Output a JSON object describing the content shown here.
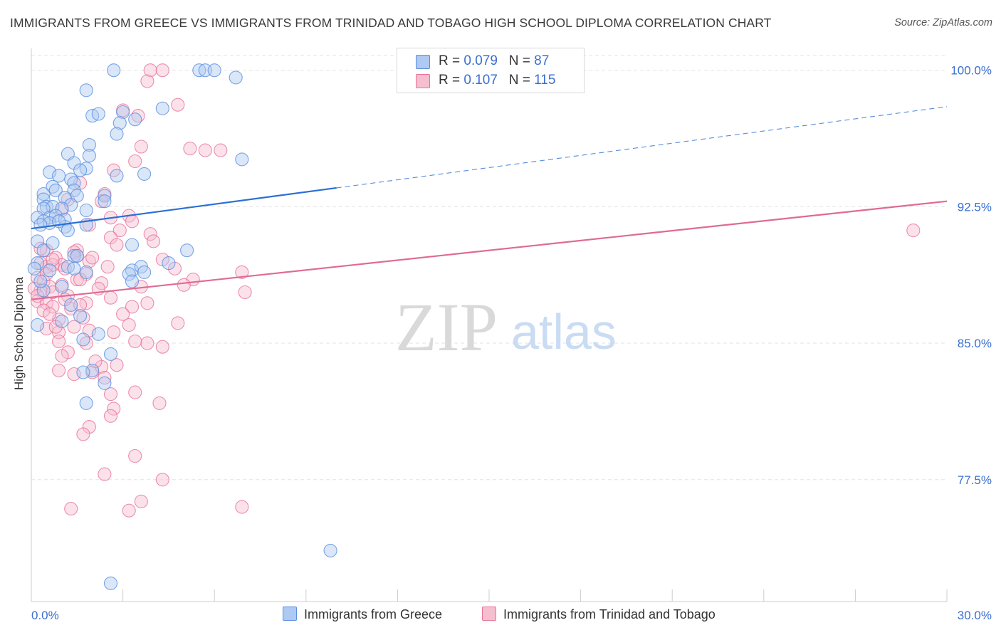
{
  "title": "IMMIGRANTS FROM GREECE VS IMMIGRANTS FROM TRINIDAD AND TOBAGO HIGH SCHOOL DIPLOMA CORRELATION CHART",
  "source": "Source: ZipAtlas.com",
  "watermark": {
    "zip": "ZIP",
    "atlas": "atlas"
  },
  "legend": {
    "greece": {
      "r_label": "R = ",
      "r": "0.079",
      "n_label": "N = ",
      "n": "87"
    },
    "trinidad": {
      "r_label": "R = ",
      "r": "0.107",
      "n_label": "N = ",
      "n": "115"
    }
  },
  "colors": {
    "greece": "#5b8fe0",
    "greece_fill": "#aec9f2",
    "trinidad": "#e9739a",
    "trinidad_fill": "#f6bfd0",
    "grid": "#e3e3e3",
    "tick_text": "#3a6fd0"
  },
  "chart_data": {
    "type": "scatter",
    "title": "IMMIGRANTS FROM GREECE VS IMMIGRANTS FROM TRINIDAD AND TOBAGO HIGH SCHOOL DIPLOMA CORRELATION CHART",
    "xlabel": "",
    "ylabel": "High School Diploma",
    "xlim": [
      0,
      30
    ],
    "ylim": [
      70.8,
      101.2
    ],
    "x_tick_labels": [
      "0.0%",
      "30.0%"
    ],
    "y_ticks": [
      77.5,
      85.0,
      92.5,
      100.0
    ],
    "y_tick_labels": [
      "77.5%",
      "85.0%",
      "92.5%",
      "100.0%"
    ],
    "grid": true,
    "series": [
      {
        "name": "Immigrants from Greece",
        "r": 0.079,
        "n": 87,
        "trend": {
          "x0": 0,
          "y0": 91.3,
          "x1": 30,
          "y1": 98.0,
          "solid_until": 10.0
        },
        "points": [
          [
            2.7,
            100
          ],
          [
            5.5,
            100
          ],
          [
            5.7,
            100
          ],
          [
            6.0,
            100
          ],
          [
            6.7,
            99.6
          ],
          [
            1.8,
            98.9
          ],
          [
            4.3,
            97.9
          ],
          [
            2.0,
            97.5
          ],
          [
            2.2,
            97.6
          ],
          [
            3.0,
            97.7
          ],
          [
            2.9,
            97.1
          ],
          [
            3.4,
            97.3
          ],
          [
            2.8,
            96.5
          ],
          [
            1.9,
            95.9
          ],
          [
            1.2,
            95.4
          ],
          [
            6.9,
            95.1
          ],
          [
            1.9,
            95.3
          ],
          [
            1.4,
            94.9
          ],
          [
            0.6,
            94.4
          ],
          [
            1.3,
            94.0
          ],
          [
            3.7,
            94.3
          ],
          [
            1.8,
            94.6
          ],
          [
            1.6,
            94.5
          ],
          [
            2.8,
            94.2
          ],
          [
            0.9,
            94.2
          ],
          [
            1.4,
            93.8
          ],
          [
            0.7,
            93.6
          ],
          [
            0.4,
            93.2
          ],
          [
            1.4,
            93.4
          ],
          [
            0.8,
            93.4
          ],
          [
            1.5,
            93.1
          ],
          [
            2.4,
            93.1
          ],
          [
            1.1,
            93.0
          ],
          [
            0.4,
            92.9
          ],
          [
            1.3,
            92.6
          ],
          [
            0.5,
            92.5
          ],
          [
            0.7,
            92.5
          ],
          [
            1.0,
            92.4
          ],
          [
            2.4,
            92.8
          ],
          [
            1.8,
            92.3
          ],
          [
            0.4,
            92.4
          ],
          [
            0.2,
            91.9
          ],
          [
            0.6,
            91.9
          ],
          [
            0.8,
            92.0
          ],
          [
            1.1,
            91.8
          ],
          [
            0.4,
            91.7
          ],
          [
            0.6,
            91.6
          ],
          [
            0.3,
            91.5
          ],
          [
            1.1,
            91.4
          ],
          [
            1.8,
            91.5
          ],
          [
            1.2,
            91.2
          ],
          [
            0.2,
            90.6
          ],
          [
            0.4,
            90.1
          ],
          [
            5.1,
            90.1
          ],
          [
            3.3,
            90.4
          ],
          [
            1.4,
            89.8
          ],
          [
            0.2,
            89.4
          ],
          [
            1.2,
            89.2
          ],
          [
            1.4,
            89.1
          ],
          [
            3.3,
            89.0
          ],
          [
            3.6,
            89.2
          ],
          [
            4.5,
            89.4
          ],
          [
            1.8,
            88.9
          ],
          [
            3.2,
            88.8
          ],
          [
            3.7,
            88.9
          ],
          [
            3.3,
            88.4
          ],
          [
            1.0,
            88.1
          ],
          [
            0.4,
            87.9
          ],
          [
            1.3,
            87.1
          ],
          [
            1.0,
            86.2
          ],
          [
            0.2,
            86.0
          ],
          [
            1.6,
            86.5
          ],
          [
            2.2,
            85.5
          ],
          [
            1.7,
            85.2
          ],
          [
            2.6,
            84.4
          ],
          [
            2.0,
            83.5
          ],
          [
            1.7,
            83.4
          ],
          [
            2.4,
            82.8
          ],
          [
            1.8,
            81.7
          ],
          [
            9.8,
            73.6
          ],
          [
            2.6,
            71.8
          ],
          [
            0.1,
            89.1
          ],
          [
            0.3,
            88.4
          ],
          [
            1.5,
            89.8
          ],
          [
            0.6,
            89.0
          ],
          [
            0.9,
            91.7
          ],
          [
            0.7,
            90.5
          ]
        ]
      },
      {
        "name": "Immigrants from Trinidad and Tobago",
        "r": 0.107,
        "n": 115,
        "trend": {
          "x0": 0,
          "y0": 87.4,
          "x1": 30,
          "y1": 92.8
        },
        "points": [
          [
            3.9,
            100
          ],
          [
            4.3,
            100
          ],
          [
            3.8,
            99.4
          ],
          [
            4.8,
            98.1
          ],
          [
            3.0,
            97.8
          ],
          [
            3.5,
            97.5
          ],
          [
            3.6,
            95.8
          ],
          [
            5.2,
            95.7
          ],
          [
            5.7,
            95.6
          ],
          [
            6.2,
            95.6
          ],
          [
            3.4,
            95.0
          ],
          [
            2.7,
            94.5
          ],
          [
            1.6,
            93.8
          ],
          [
            2.4,
            93.2
          ],
          [
            1.2,
            92.9
          ],
          [
            2.3,
            92.8
          ],
          [
            3.2,
            92.0
          ],
          [
            2.6,
            91.9
          ],
          [
            3.3,
            91.7
          ],
          [
            1.9,
            91.5
          ],
          [
            2.9,
            91.2
          ],
          [
            3.9,
            91.0
          ],
          [
            2.6,
            90.8
          ],
          [
            1.5,
            90.1
          ],
          [
            1.5,
            89.8
          ],
          [
            1.9,
            89.5
          ],
          [
            4.3,
            89.6
          ],
          [
            0.5,
            90.1
          ],
          [
            0.8,
            89.7
          ],
          [
            1.0,
            89.3
          ],
          [
            0.3,
            89.4
          ],
          [
            0.5,
            89.2
          ],
          [
            0.7,
            89.3
          ],
          [
            1.1,
            89.1
          ],
          [
            2.5,
            89.2
          ],
          [
            1.8,
            88.8
          ],
          [
            4.7,
            89.1
          ],
          [
            6.9,
            88.9
          ],
          [
            5.3,
            88.5
          ],
          [
            0.2,
            88.6
          ],
          [
            0.4,
            88.4
          ],
          [
            0.6,
            88.1
          ],
          [
            1.0,
            88.2
          ],
          [
            1.5,
            88.5
          ],
          [
            2.3,
            88.3
          ],
          [
            0.3,
            87.9
          ],
          [
            0.7,
            87.8
          ],
          [
            1.2,
            87.6
          ],
          [
            3.6,
            88.1
          ],
          [
            2.6,
            87.5
          ],
          [
            0.2,
            87.3
          ],
          [
            0.5,
            87.2
          ],
          [
            0.7,
            87.0
          ],
          [
            1.3,
            86.9
          ],
          [
            1.8,
            87.2
          ],
          [
            0.9,
            86.3
          ],
          [
            3.3,
            87.0
          ],
          [
            7.0,
            87.8
          ],
          [
            4.8,
            86.1
          ],
          [
            0.5,
            85.8
          ],
          [
            0.9,
            85.6
          ],
          [
            1.9,
            85.7
          ],
          [
            3.2,
            86.0
          ],
          [
            3.4,
            85.1
          ],
          [
            3.8,
            85.0
          ],
          [
            2.7,
            85.6
          ],
          [
            1.4,
            85.9
          ],
          [
            1.8,
            85.0
          ],
          [
            4.3,
            84.8
          ],
          [
            1.2,
            84.5
          ],
          [
            1.0,
            84.3
          ],
          [
            0.9,
            83.5
          ],
          [
            1.4,
            83.3
          ],
          [
            2.0,
            83.4
          ],
          [
            2.3,
            83.7
          ],
          [
            2.8,
            83.8
          ],
          [
            2.4,
            83.1
          ],
          [
            3.4,
            82.3
          ],
          [
            4.2,
            81.7
          ],
          [
            2.7,
            81.4
          ],
          [
            2.6,
            81.0
          ],
          [
            1.9,
            80.4
          ],
          [
            1.7,
            80.0
          ],
          [
            3.4,
            78.8
          ],
          [
            2.4,
            77.8
          ],
          [
            4.3,
            77.5
          ],
          [
            3.6,
            76.3
          ],
          [
            1.3,
            75.9
          ],
          [
            3.2,
            75.8
          ],
          [
            6.9,
            76.0
          ],
          [
            28.9,
            91.2
          ],
          [
            0.1,
            88.0
          ],
          [
            0.2,
            87.6
          ],
          [
            0.4,
            86.8
          ],
          [
            0.6,
            86.6
          ],
          [
            0.8,
            85.9
          ],
          [
            1.1,
            87.4
          ],
          [
            1.6,
            87.1
          ],
          [
            2.0,
            89.7
          ],
          [
            2.2,
            88.0
          ],
          [
            0.3,
            90.2
          ],
          [
            0.5,
            88.8
          ],
          [
            0.7,
            89.6
          ],
          [
            1.4,
            90.0
          ],
          [
            1.6,
            88.5
          ],
          [
            1.7,
            86.4
          ],
          [
            2.1,
            84.0
          ],
          [
            2.6,
            82.2
          ],
          [
            3.0,
            86.6
          ],
          [
            3.8,
            87.2
          ],
          [
            4.0,
            90.6
          ],
          [
            5.0,
            88.2
          ],
          [
            1.0,
            92.3
          ],
          [
            2.8,
            90.4
          ],
          [
            0.9,
            85.1
          ]
        ]
      }
    ],
    "legend": [
      "Immigrants from Greece",
      "Immigrants from Trinidad and Tobago"
    ],
    "legend_position": "bottom-center"
  }
}
